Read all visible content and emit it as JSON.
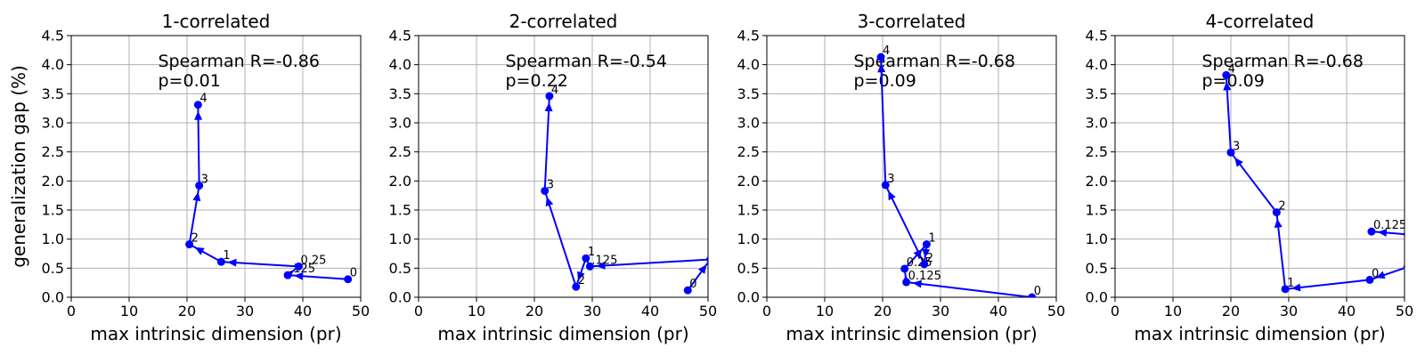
{
  "chart_data": [
    {
      "type": "line",
      "title": "1-correlated",
      "xlabel": "max intrinsic dimension (pr)",
      "ylabel": "generalization gap (%)",
      "xlim": [
        0,
        50
      ],
      "ylim": [
        0,
        4.5
      ],
      "xticks": [
        "0",
        "10",
        "20",
        "30",
        "40",
        "50"
      ],
      "yticks": [
        "0.0",
        "0.5",
        "1.0",
        "1.5",
        "2.0",
        "2.5",
        "3.0",
        "3.5",
        "4.0",
        "4.5"
      ],
      "grid": true,
      "color": "#0000ff",
      "annotation": {
        "line1": "Spearman R=-0.86",
        "line2": "p=0.01"
      },
      "points": [
        {
          "label": "0",
          "x": 47.8,
          "y": 0.31
        },
        {
          "label": ".125",
          "x": 37.4,
          "y": 0.38
        },
        {
          "label": "0.25",
          "x": 39.3,
          "y": 0.53
        },
        {
          "label": "1",
          "x": 25.9,
          "y": 0.61
        },
        {
          "label": "2",
          "x": 20.4,
          "y": 0.91
        },
        {
          "label": "3",
          "x": 22.1,
          "y": 1.92
        },
        {
          "label": "4",
          "x": 21.9,
          "y": 3.31
        }
      ]
    },
    {
      "type": "line",
      "title": "2-correlated",
      "xlabel": "max intrinsic dimension (pr)",
      "ylabel": "",
      "xlim": [
        0,
        50
      ],
      "ylim": [
        0,
        4.5
      ],
      "xticks": [
        "0",
        "10",
        "20",
        "30",
        "40",
        "50"
      ],
      "yticks": [
        "0.0",
        "0.5",
        "1.0",
        "1.5",
        "2.0",
        "2.5",
        "3.0",
        "3.5",
        "4.0",
        "4.5"
      ],
      "grid": true,
      "color": "#0000ff",
      "annotation": {
        "line1": "Spearman R=-0.54",
        "line2": "p=0.22"
      },
      "points": [
        {
          "label": "0",
          "x": 46.5,
          "y": 0.12
        },
        {
          "label": "",
          "x": 50.4,
          "y": 0.65
        },
        {
          "label": ".125",
          "x": 29.6,
          "y": 0.53
        },
        {
          "label": "1",
          "x": 28.9,
          "y": 0.67
        },
        {
          "label": "2",
          "x": 27.2,
          "y": 0.18
        },
        {
          "label": "3",
          "x": 21.8,
          "y": 1.83
        },
        {
          "label": "4",
          "x": 22.6,
          "y": 3.46
        }
      ]
    },
    {
      "type": "line",
      "title": "3-correlated",
      "xlabel": "max intrinsic dimension (pr)",
      "ylabel": "",
      "xlim": [
        0,
        50
      ],
      "ylim": [
        0,
        4.5
      ],
      "xticks": [
        "0",
        "10",
        "20",
        "30",
        "40",
        "50"
      ],
      "yticks": [
        "0.0",
        "0.5",
        "1.0",
        "1.5",
        "2.0",
        "2.5",
        "3.0",
        "3.5",
        "4.0",
        "4.5"
      ],
      "grid": true,
      "color": "#0000ff",
      "annotation": {
        "line1": "Spearman R=-0.68",
        "line2": "p=0.09"
      },
      "points": [
        {
          "label": "0",
          "x": 45.8,
          "y": 0.0
        },
        {
          "label": "0.125",
          "x": 24.1,
          "y": 0.26
        },
        {
          "label": "0.25",
          "x": 23.8,
          "y": 0.49
        },
        {
          "label": "1",
          "x": 27.6,
          "y": 0.91
        },
        {
          "label": "2",
          "x": 27.2,
          "y": 0.57
        },
        {
          "label": "3",
          "x": 20.5,
          "y": 1.93
        },
        {
          "label": "4",
          "x": 19.7,
          "y": 4.13
        }
      ]
    },
    {
      "type": "line",
      "title": "4-correlated",
      "xlabel": "max intrinsic dimension (pr)",
      "ylabel": "",
      "xlim": [
        0,
        50
      ],
      "ylim": [
        0,
        4.5
      ],
      "xticks": [
        "0",
        "10",
        "20",
        "30",
        "40",
        "50"
      ],
      "yticks": [
        "0.0",
        "0.5",
        "1.0",
        "1.5",
        "2.0",
        "2.5",
        "3.0",
        "3.5",
        "4.0",
        "4.5"
      ],
      "grid": true,
      "color": "#0000ff",
      "annotation": {
        "line1": "Spearman R=-0.68",
        "line2": "p=0.09"
      },
      "points": [
        {
          "label": "",
          "x": 50.5,
          "y": 0.52
        },
        {
          "label": "0",
          "x": 44.0,
          "y": 0.3
        },
        {
          "label": "1",
          "x": 29.4,
          "y": 0.14
        },
        {
          "label": "2",
          "x": 27.9,
          "y": 1.46
        },
        {
          "label": "3",
          "x": 20.0,
          "y": 2.49
        },
        {
          "label": "4",
          "x": 19.2,
          "y": 3.82
        }
      ],
      "extra_segment": [
        {
          "label": "",
          "x": 50.5,
          "y": 1.08
        },
        {
          "label": "0.125",
          "x": 44.3,
          "y": 1.13
        }
      ]
    }
  ]
}
